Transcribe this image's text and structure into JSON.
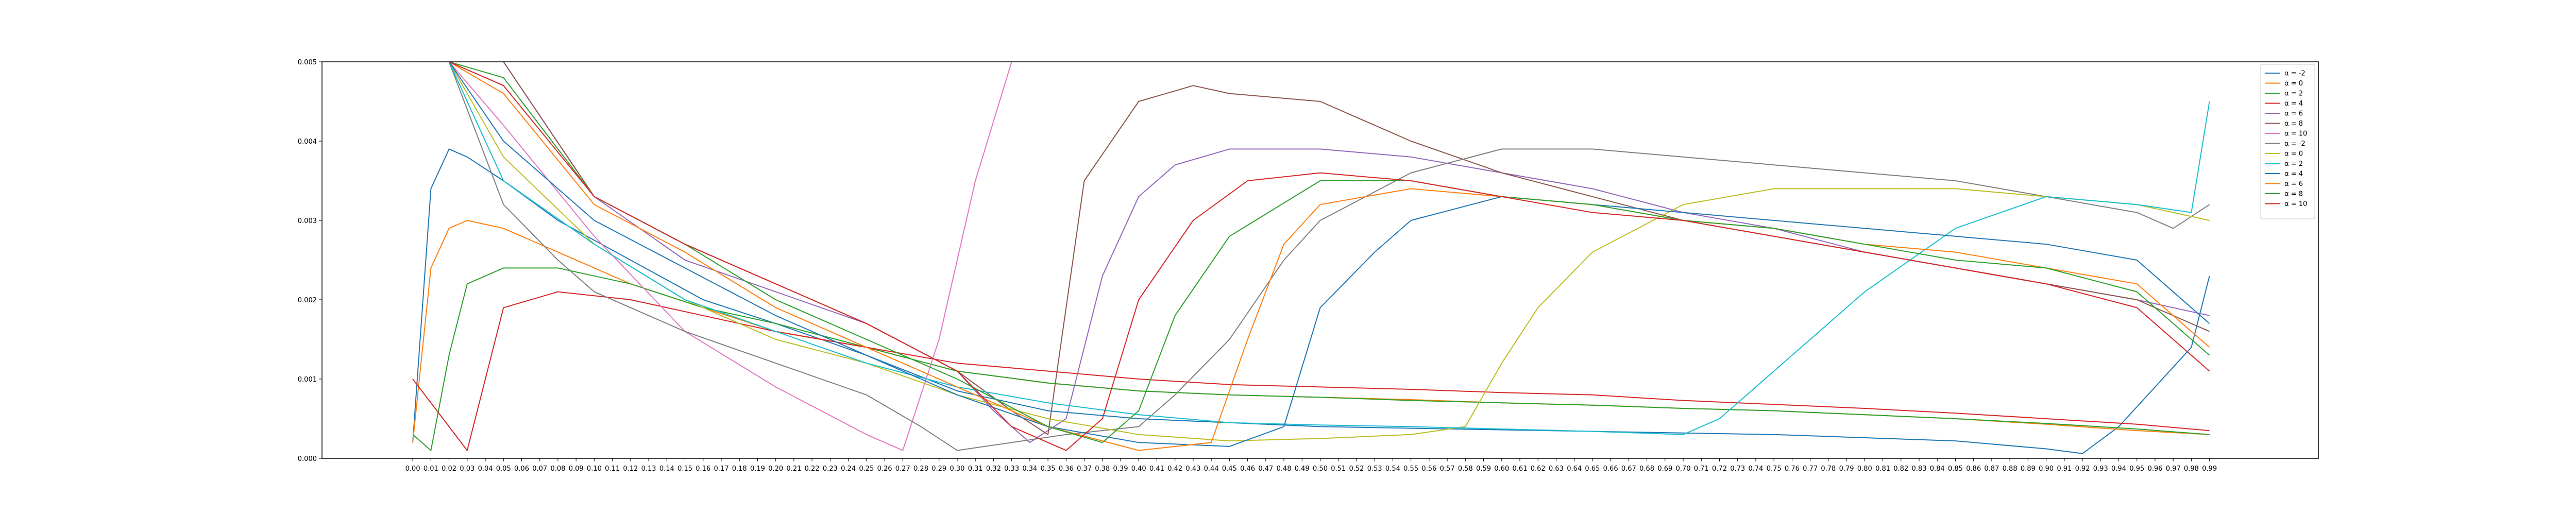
{
  "chart_data": {
    "type": "line",
    "title": "",
    "xlabel": "",
    "ylabel": "",
    "xlim": [
      -0.05,
      1.05
    ],
    "ylim": [
      0,
      0.005
    ],
    "x_tick_labels": [
      "0.00",
      "0.01",
      "0.02",
      "0.03",
      "0.04",
      "0.05",
      "0.06",
      "0.07",
      "0.08",
      "0.09",
      "0.10",
      "0.11",
      "0.12",
      "0.13",
      "0.14",
      "0.15",
      "0.16",
      "0.17",
      "0.18",
      "0.19",
      "0.20",
      "0.21",
      "0.22",
      "0.23",
      "0.24",
      "0.25",
      "0.26",
      "0.27",
      "0.28",
      "0.29",
      "0.30",
      "0.31",
      "0.32",
      "0.33",
      "0.34",
      "0.35",
      "0.36",
      "0.37",
      "0.38",
      "0.39",
      "0.40",
      "0.41",
      "0.42",
      "0.43",
      "0.44",
      "0.45",
      "0.46",
      "0.47",
      "0.48",
      "0.49",
      "0.50",
      "0.51",
      "0.52",
      "0.53",
      "0.54",
      "0.55",
      "0.56",
      "0.57",
      "0.58",
      "0.59",
      "0.60",
      "0.61",
      "0.62",
      "0.63",
      "0.64",
      "0.65",
      "0.66",
      "0.67",
      "0.68",
      "0.69",
      "0.70",
      "0.71",
      "0.72",
      "0.73",
      "0.74",
      "0.75",
      "0.76",
      "0.77",
      "0.78",
      "0.79",
      "0.80",
      "0.81",
      "0.82",
      "0.83",
      "0.84",
      "0.85",
      "0.86",
      "0.87",
      "0.88",
      "0.89",
      "0.90",
      "0.91",
      "0.92",
      "0.93",
      "0.94",
      "0.95",
      "0.96",
      "0.97",
      "0.98",
      "0.99"
    ],
    "y_ticks": [
      0.0,
      0.001,
      0.002,
      0.003,
      0.004,
      0.005
    ],
    "y_tick_labels": [
      "0.000",
      "0.001",
      "0.002",
      "0.003",
      "0.004",
      "0.005"
    ],
    "grid": false,
    "legend_position": "top-right",
    "series": [
      {
        "name": "α = -2",
        "color": "#1f77b4",
        "x": [
          0.0,
          0.01,
          0.02,
          0.03,
          0.05,
          0.08,
          0.12,
          0.16,
          0.2,
          0.25,
          0.3,
          0.35,
          0.4,
          0.45,
          0.5,
          0.55,
          0.6,
          0.65,
          0.7,
          0.75,
          0.8,
          0.85,
          0.9,
          0.92,
          0.94,
          0.96,
          0.98,
          0.99
        ],
        "y": [
          0.0002,
          0.0034,
          0.0039,
          0.0038,
          0.0035,
          0.003,
          0.0025,
          0.002,
          0.0017,
          0.0013,
          0.00085,
          0.0006,
          0.0005,
          0.00045,
          0.0004,
          0.00038,
          0.00036,
          0.00034,
          0.00032,
          0.0003,
          0.00026,
          0.00022,
          0.00012,
          6e-05,
          0.0004,
          0.0009,
          0.0014,
          0.0023
        ]
      },
      {
        "name": "α = 0",
        "color": "#ff7f0e",
        "x": [
          0.0,
          0.01,
          0.02,
          0.03,
          0.05,
          0.08,
          0.12,
          0.16,
          0.2,
          0.25,
          0.3,
          0.35,
          0.4,
          0.45,
          0.5,
          0.55,
          0.6,
          0.65,
          0.7,
          0.75,
          0.8,
          0.85,
          0.9,
          0.95,
          0.99
        ],
        "y": [
          0.0002,
          0.0024,
          0.0029,
          0.003,
          0.0029,
          0.0026,
          0.0022,
          0.0019,
          0.0016,
          0.0014,
          0.0011,
          0.00095,
          0.00085,
          0.0008,
          0.00077,
          0.00074,
          0.0007,
          0.00067,
          0.00063,
          0.0006,
          0.00055,
          0.0005,
          0.00043,
          0.00035,
          0.0003
        ]
      },
      {
        "name": "α = 2",
        "color": "#2ca02c",
        "x": [
          0.0,
          0.01,
          0.02,
          0.03,
          0.05,
          0.08,
          0.12,
          0.16,
          0.2,
          0.25,
          0.3,
          0.35,
          0.4,
          0.45,
          0.5,
          0.55,
          0.6,
          0.65,
          0.7,
          0.75,
          0.8,
          0.85,
          0.9,
          0.95,
          0.99
        ],
        "y": [
          0.0003,
          0.0001,
          0.0013,
          0.0022,
          0.0024,
          0.0024,
          0.0022,
          0.0019,
          0.0017,
          0.0014,
          0.0011,
          0.00095,
          0.00085,
          0.0008,
          0.00077,
          0.00073,
          0.0007,
          0.00067,
          0.00063,
          0.0006,
          0.00055,
          0.0005,
          0.00044,
          0.00037,
          0.0003
        ]
      },
      {
        "name": "α = 4",
        "color": "#d62728",
        "x": [
          0.0,
          0.02,
          0.03,
          0.05,
          0.08,
          0.12,
          0.16,
          0.2,
          0.25,
          0.3,
          0.35,
          0.4,
          0.45,
          0.5,
          0.55,
          0.6,
          0.65,
          0.7,
          0.75,
          0.8,
          0.85,
          0.9,
          0.95,
          0.99
        ],
        "y": [
          0.001,
          0.0004,
          0.0001,
          0.0019,
          0.0021,
          0.002,
          0.0018,
          0.0016,
          0.0014,
          0.0012,
          0.0011,
          0.001,
          0.00093,
          0.0009,
          0.00087,
          0.00083,
          0.0008,
          0.00073,
          0.00068,
          0.00063,
          0.00057,
          0.0005,
          0.00043,
          0.00035
        ]
      },
      {
        "name": "α = 6",
        "color": "#9467bd",
        "x": [
          0.0,
          0.01,
          0.02,
          0.05,
          0.1,
          0.15,
          0.2,
          0.25,
          0.3,
          0.32,
          0.34,
          0.36,
          0.38,
          0.4,
          0.42,
          0.45,
          0.5,
          0.55,
          0.6,
          0.65,
          0.7,
          0.75,
          0.8,
          0.85,
          0.9,
          0.95,
          0.99
        ],
        "y": [
          0.005,
          0.005,
          0.005,
          0.005,
          0.0033,
          0.0025,
          0.0021,
          0.0017,
          0.0011,
          0.0006,
          0.0002,
          0.0005,
          0.0023,
          0.0033,
          0.0037,
          0.0039,
          0.0039,
          0.0038,
          0.0036,
          0.0034,
          0.0031,
          0.0029,
          0.0026,
          0.0024,
          0.0022,
          0.002,
          0.0018
        ]
      },
      {
        "name": "α = 8",
        "color": "#8c564b",
        "x": [
          0.0,
          0.02,
          0.05,
          0.1,
          0.15,
          0.2,
          0.25,
          0.3,
          0.33,
          0.35,
          0.37,
          0.4,
          0.43,
          0.45,
          0.5,
          0.55,
          0.6,
          0.65,
          0.7,
          0.75,
          0.8,
          0.85,
          0.9,
          0.95,
          0.99
        ],
        "y": [
          0.005,
          0.005,
          0.005,
          0.0033,
          0.0027,
          0.0022,
          0.0017,
          0.0011,
          0.0006,
          0.0003,
          0.0035,
          0.0045,
          0.0047,
          0.0046,
          0.0045,
          0.004,
          0.0036,
          0.0033,
          0.003,
          0.0028,
          0.0026,
          0.0024,
          0.0022,
          0.002,
          0.0016
        ]
      },
      {
        "name": "α = 10",
        "color": "#e377c2",
        "x": [
          0.0,
          0.02,
          0.05,
          0.1,
          0.15,
          0.2,
          0.25,
          0.27,
          0.29,
          0.31,
          0.33
        ],
        "y": [
          0.005,
          0.005,
          0.0042,
          0.0028,
          0.0016,
          0.0009,
          0.0003,
          0.0001,
          0.0015,
          0.0035,
          0.005
        ]
      },
      {
        "name": "α = -2",
        "color": "#7f7f7f",
        "x": [
          0.0,
          0.02,
          0.05,
          0.08,
          0.1,
          0.15,
          0.2,
          0.25,
          0.28,
          0.3,
          0.33,
          0.36,
          0.4,
          0.42,
          0.45,
          0.48,
          0.5,
          0.55,
          0.6,
          0.65,
          0.7,
          0.75,
          0.8,
          0.85,
          0.9,
          0.95,
          0.97,
          0.99
        ],
        "y": [
          0.005,
          0.005,
          0.0032,
          0.0025,
          0.0021,
          0.0016,
          0.0012,
          0.0008,
          0.0004,
          0.0001,
          0.0002,
          0.0003,
          0.0004,
          0.0008,
          0.0015,
          0.0025,
          0.003,
          0.0036,
          0.0039,
          0.0039,
          0.0038,
          0.0037,
          0.0036,
          0.0035,
          0.0033,
          0.0031,
          0.0029,
          0.0032
        ]
      },
      {
        "name": "α = 0",
        "color": "#bcbd22",
        "x": [
          0.0,
          0.02,
          0.05,
          0.1,
          0.15,
          0.2,
          0.25,
          0.3,
          0.35,
          0.4,
          0.45,
          0.5,
          0.55,
          0.58,
          0.6,
          0.62,
          0.65,
          0.7,
          0.75,
          0.8,
          0.85,
          0.9,
          0.95,
          0.99
        ],
        "y": [
          0.005,
          0.005,
          0.0038,
          0.0027,
          0.002,
          0.0015,
          0.0012,
          0.0008,
          0.0005,
          0.0003,
          0.00022,
          0.00025,
          0.0003,
          0.0004,
          0.0012,
          0.0019,
          0.0026,
          0.0032,
          0.0034,
          0.0034,
          0.0034,
          0.0033,
          0.0032,
          0.003
        ]
      },
      {
        "name": "α = 2",
        "color": "#17becf",
        "x": [
          0.0,
          0.02,
          0.05,
          0.1,
          0.15,
          0.2,
          0.25,
          0.3,
          0.35,
          0.4,
          0.45,
          0.5,
          0.55,
          0.6,
          0.65,
          0.7,
          0.72,
          0.75,
          0.8,
          0.85,
          0.9,
          0.95,
          0.98,
          0.99
        ],
        "y": [
          0.005,
          0.005,
          0.0035,
          0.0027,
          0.002,
          0.0016,
          0.0012,
          0.0009,
          0.0007,
          0.00055,
          0.00045,
          0.00042,
          0.0004,
          0.00037,
          0.00034,
          0.0003,
          0.0005,
          0.0011,
          0.0021,
          0.0029,
          0.0033,
          0.0032,
          0.0031,
          0.0045
        ]
      },
      {
        "name": "α = 4",
        "color": "#1f77b4",
        "x": [
          0.0,
          0.02,
          0.05,
          0.1,
          0.15,
          0.2,
          0.25,
          0.3,
          0.35,
          0.4,
          0.45,
          0.48,
          0.5,
          0.53,
          0.55,
          0.6,
          0.65,
          0.7,
          0.75,
          0.8,
          0.85,
          0.9,
          0.95,
          0.99
        ],
        "y": [
          0.005,
          0.005,
          0.004,
          0.003,
          0.0024,
          0.0018,
          0.0013,
          0.0008,
          0.0004,
          0.0002,
          0.00015,
          0.0004,
          0.0019,
          0.0026,
          0.003,
          0.0033,
          0.0032,
          0.0031,
          0.003,
          0.0029,
          0.0028,
          0.0027,
          0.0025,
          0.0017
        ]
      },
      {
        "name": "α = 6",
        "color": "#ff7f0e",
        "x": [
          0.0,
          0.02,
          0.05,
          0.1,
          0.15,
          0.2,
          0.25,
          0.3,
          0.35,
          0.4,
          0.44,
          0.46,
          0.48,
          0.5,
          0.55,
          0.6,
          0.65,
          0.7,
          0.75,
          0.8,
          0.85,
          0.9,
          0.95,
          0.99
        ],
        "y": [
          0.005,
          0.005,
          0.0046,
          0.0032,
          0.0026,
          0.0019,
          0.0014,
          0.0009,
          0.0004,
          0.0001,
          0.0002,
          0.0015,
          0.0027,
          0.0032,
          0.0034,
          0.0033,
          0.0032,
          0.003,
          0.0029,
          0.0027,
          0.0026,
          0.0024,
          0.0022,
          0.0014
        ]
      },
      {
        "name": "α = 8",
        "color": "#2ca02c",
        "x": [
          0.0,
          0.02,
          0.05,
          0.1,
          0.15,
          0.2,
          0.25,
          0.3,
          0.35,
          0.38,
          0.4,
          0.42,
          0.45,
          0.5,
          0.55,
          0.6,
          0.65,
          0.7,
          0.75,
          0.8,
          0.85,
          0.9,
          0.95,
          0.99
        ],
        "y": [
          0.005,
          0.005,
          0.0048,
          0.0033,
          0.0027,
          0.002,
          0.0015,
          0.001,
          0.0004,
          0.0002,
          0.0006,
          0.0018,
          0.0028,
          0.0035,
          0.0035,
          0.0033,
          0.0032,
          0.003,
          0.0029,
          0.0027,
          0.0025,
          0.0024,
          0.0021,
          0.0013
        ]
      },
      {
        "name": "α = 10",
        "color": "#d62728",
        "x": [
          0.0,
          0.02,
          0.05,
          0.1,
          0.15,
          0.2,
          0.25,
          0.3,
          0.33,
          0.36,
          0.38,
          0.4,
          0.43,
          0.46,
          0.5,
          0.55,
          0.6,
          0.65,
          0.7,
          0.75,
          0.8,
          0.85,
          0.9,
          0.95,
          0.99
        ],
        "y": [
          0.005,
          0.005,
          0.0047,
          0.0033,
          0.0027,
          0.0022,
          0.0017,
          0.0011,
          0.0004,
          0.0001,
          0.0005,
          0.002,
          0.003,
          0.0035,
          0.0036,
          0.0035,
          0.0033,
          0.0031,
          0.003,
          0.0028,
          0.0026,
          0.0024,
          0.0022,
          0.0019,
          0.0011
        ]
      }
    ]
  }
}
